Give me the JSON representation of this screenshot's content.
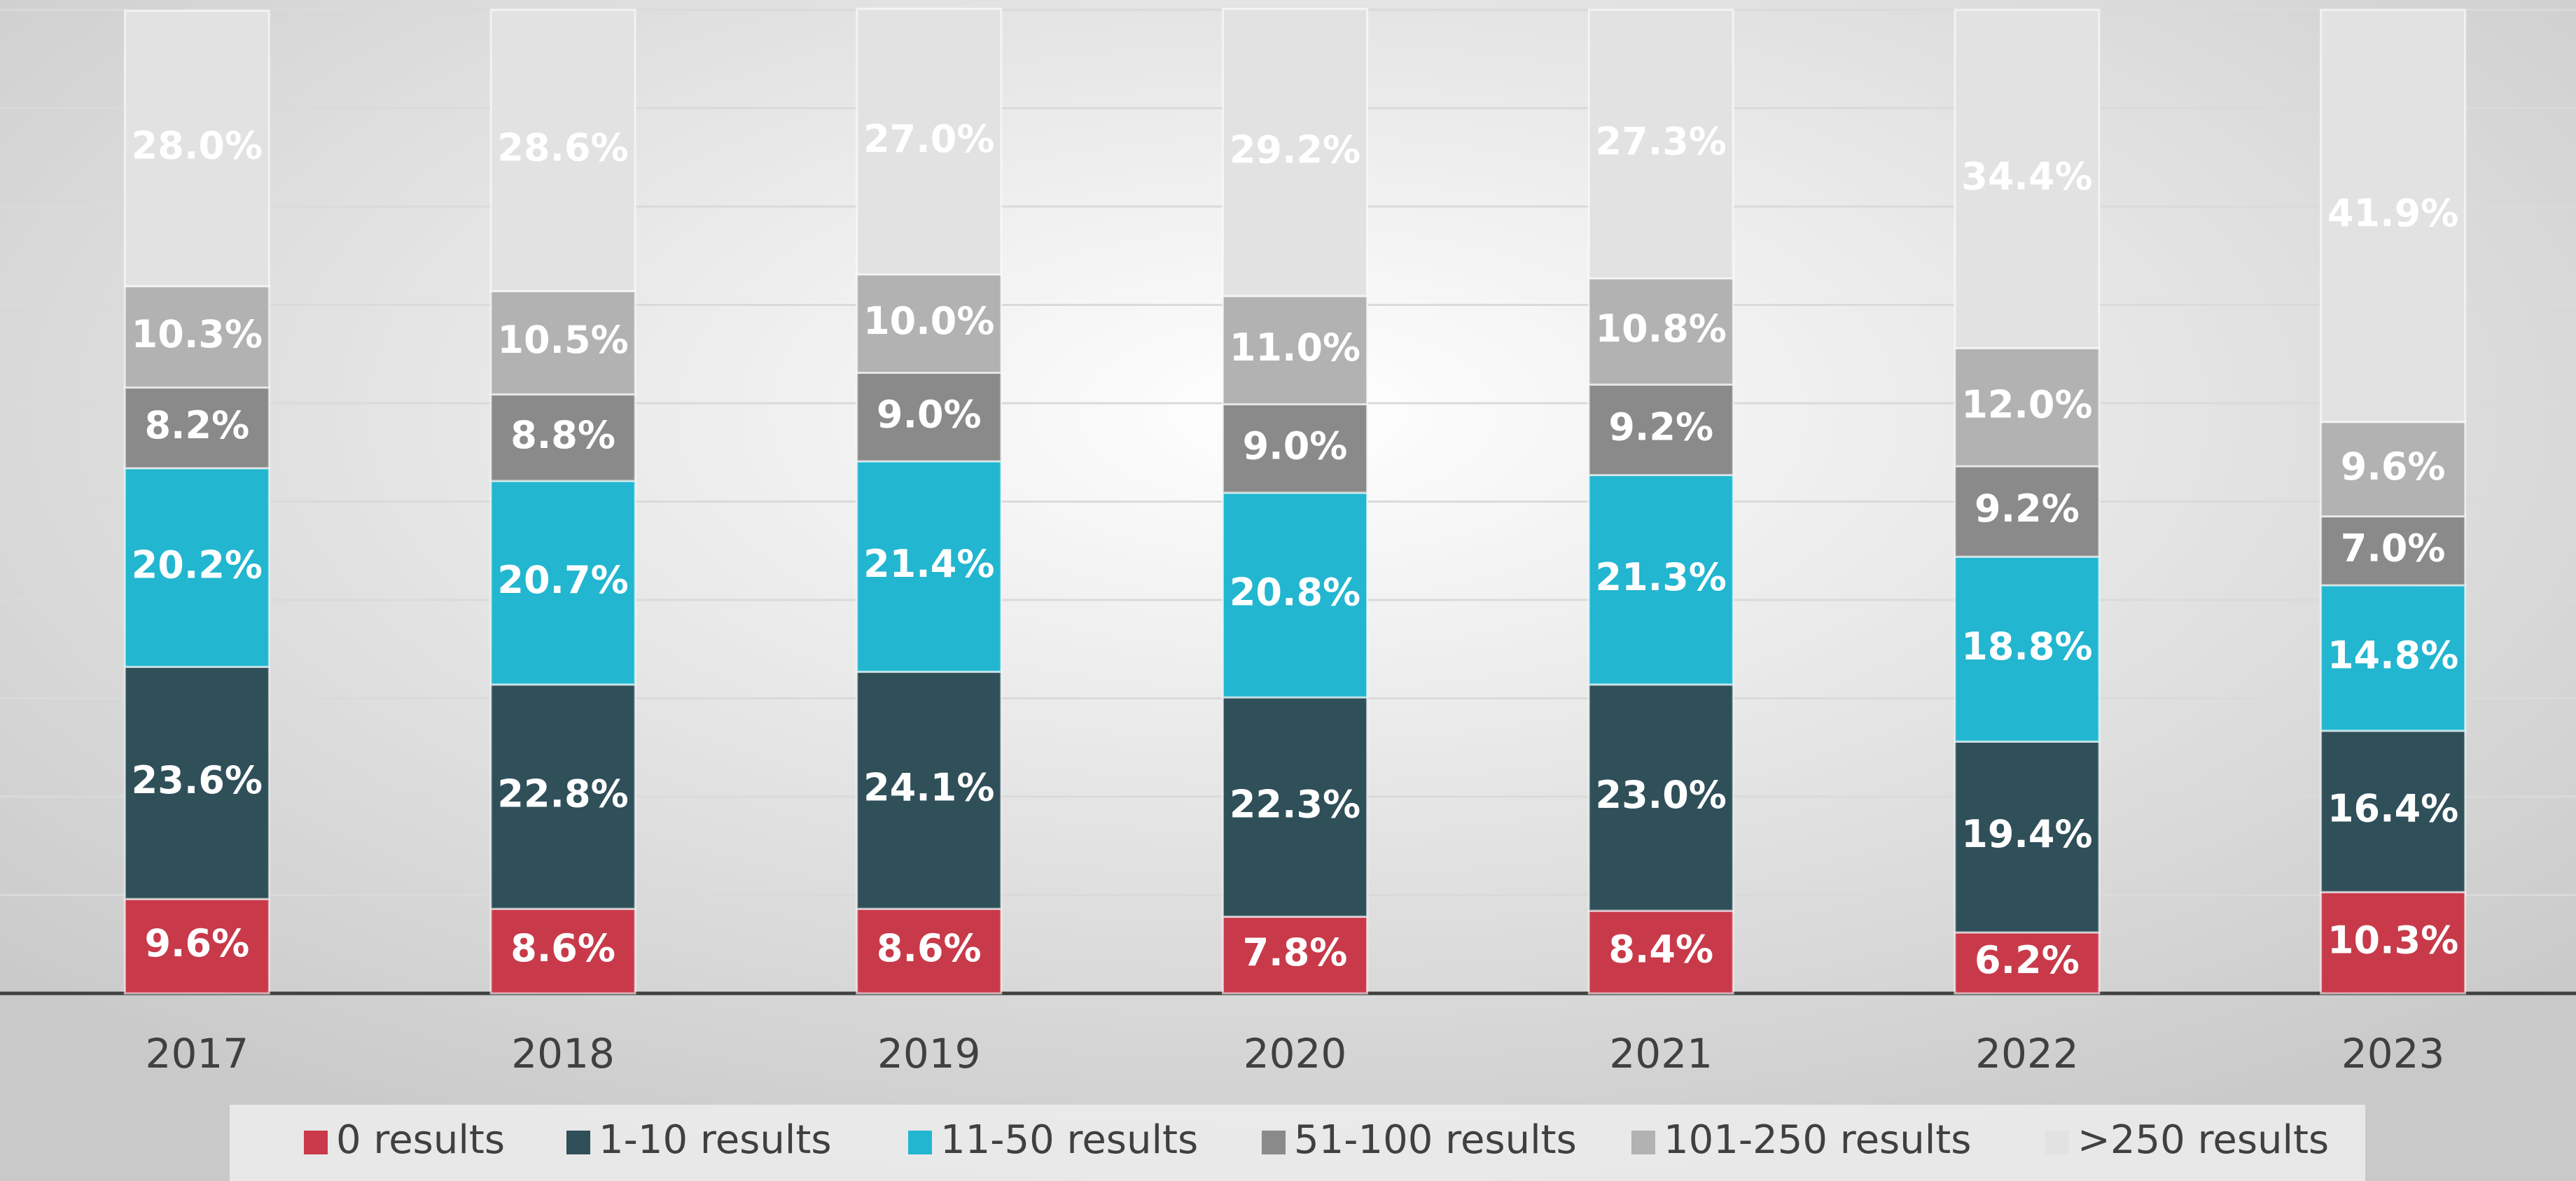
{
  "chart_data": {
    "type": "stacked_bar",
    "categories": [
      "2017",
      "2018",
      "2019",
      "2020",
      "2021",
      "2022",
      "2023"
    ],
    "series": [
      {
        "name": "0 results",
        "color": "#c83a4a",
        "values": [
          9.6,
          8.6,
          8.6,
          7.8,
          8.4,
          6.2,
          10.3
        ],
        "value_labels": [
          "9.6%",
          "8.6%",
          "8.6%",
          "7.8%",
          "8.4%",
          "6.2%",
          "10.3%"
        ]
      },
      {
        "name": "1-10 results",
        "color": "#2f4f59",
        "values": [
          23.6,
          22.8,
          24.1,
          22.3,
          23.0,
          19.4,
          16.4
        ],
        "value_labels": [
          "23.6%",
          "22.8%",
          "24.1%",
          "22.3%",
          "23.0%",
          "19.4%",
          "16.4%"
        ]
      },
      {
        "name": "11-50 results",
        "color": "#22b6d0",
        "values": [
          20.2,
          20.7,
          21.4,
          20.8,
          21.3,
          18.8,
          14.8
        ],
        "value_labels": [
          "20.2%",
          "20.7%",
          "21.4%",
          "20.8%",
          "21.3%",
          "18.8%",
          "14.8%"
        ]
      },
      {
        "name": "51-100 results",
        "color": "#8a8a8a",
        "values": [
          8.2,
          8.8,
          9.0,
          9.0,
          9.2,
          9.2,
          7.0
        ],
        "value_labels": [
          "8.2%",
          "8.8%",
          "9.0%",
          "9.0%",
          "9.2%",
          "9.2%",
          "7.0%"
        ]
      },
      {
        "name": "101-250 results",
        "color": "#b2b2b2",
        "values": [
          10.3,
          10.5,
          10.0,
          11.0,
          10.8,
          12.0,
          9.6
        ],
        "value_labels": [
          "10.3%",
          "10.5%",
          "10.0%",
          "11.0%",
          "10.8%",
          "12.0%",
          "9.6%"
        ]
      },
      {
        "name": ">250 results",
        "color": "#e2e2e2",
        "values": [
          28.0,
          28.6,
          27.0,
          29.2,
          27.3,
          34.4,
          41.9
        ],
        "value_labels": [
          "28.0%",
          "28.6%",
          "27.0%",
          "29.2%",
          "27.3%",
          "34.4%",
          "41.9%"
        ]
      }
    ],
    "ylim": [
      0,
      100
    ],
    "yticks": [
      0,
      10,
      20,
      30,
      40,
      50,
      60,
      70,
      80,
      90,
      100
    ],
    "grid": true,
    "legend": "bottom"
  }
}
